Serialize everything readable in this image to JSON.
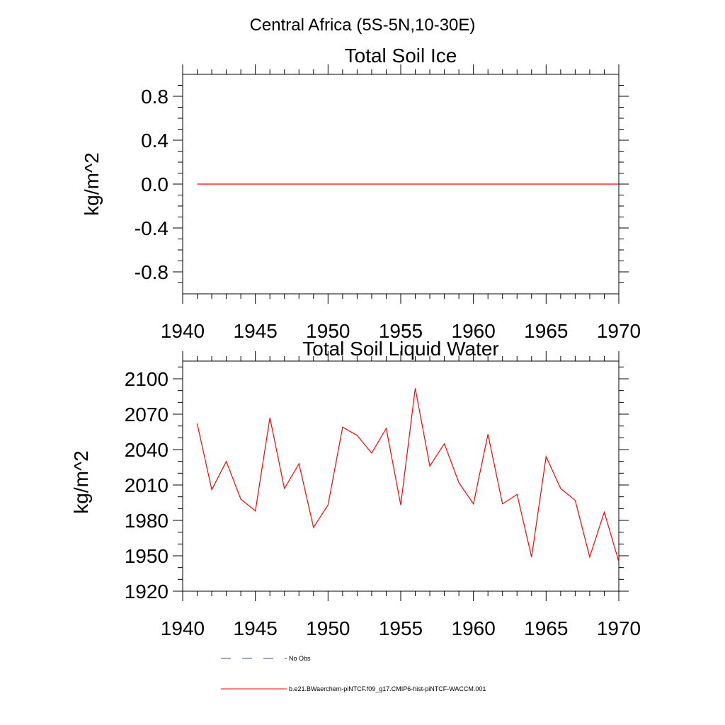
{
  "figure": {
    "title": "Central Africa (5S-5N,10-30E)"
  },
  "chart_data": [
    {
      "type": "line",
      "title": "Total Soil Ice",
      "xlabel": "",
      "ylabel": "kg/m^2",
      "xlim": [
        1940,
        1970
      ],
      "ylim": [
        -1.0,
        1.0
      ],
      "xticks": [
        "1940",
        "1945",
        "1950",
        "1955",
        "1960",
        "1965",
        "1970"
      ],
      "yticks": [
        "0.8",
        "0.4",
        "0.0",
        "-0.4",
        "-0.8"
      ],
      "ytick_values": [
        0.8,
        0.4,
        0.0,
        -0.4,
        -0.8
      ],
      "grid": false,
      "series": [
        {
          "name": "b.e21.BWaerchem-piNTCF.f09_g17.CMIP6-hist-piNTCF-WACCM.001",
          "color": "#ff0000",
          "x": [
            1941,
            1942,
            1943,
            1944,
            1945,
            1946,
            1947,
            1948,
            1949,
            1950,
            1951,
            1952,
            1953,
            1954,
            1955,
            1956,
            1957,
            1958,
            1959,
            1960,
            1961,
            1962,
            1963,
            1964,
            1965,
            1966,
            1967,
            1968,
            1969,
            1970
          ],
          "values": [
            0,
            0,
            0,
            0,
            0,
            0,
            0,
            0,
            0,
            0,
            0,
            0,
            0,
            0,
            0,
            0,
            0,
            0,
            0,
            0,
            0,
            0,
            0,
            0,
            0,
            0,
            0,
            0,
            0,
            0
          ]
        }
      ]
    },
    {
      "type": "line",
      "title": "Total Soil Liquid Water",
      "xlabel": "",
      "ylabel": "kg/m^2",
      "xlim": [
        1940,
        1970
      ],
      "ylim": [
        1920,
        2115
      ],
      "xticks": [
        "1940",
        "1945",
        "1950",
        "1955",
        "1960",
        "1965",
        "1970"
      ],
      "yticks": [
        "2100",
        "2070",
        "2040",
        "2010",
        "1980",
        "1950",
        "1920"
      ],
      "ytick_values": [
        2100,
        2070,
        2040,
        2010,
        1980,
        1950,
        1920
      ],
      "grid": false,
      "series": [
        {
          "name": "b.e21.BWaerchem-piNTCF.f09_g17.CMIP6-hist-piNTCF-WACCM.001",
          "color": "#ff0000",
          "x": [
            1941,
            1942,
            1943,
            1944,
            1945,
            1946,
            1947,
            1948,
            1949,
            1950,
            1951,
            1952,
            1953,
            1954,
            1955,
            1956,
            1957,
            1958,
            1959,
            1960,
            1961,
            1962,
            1963,
            1964,
            1965,
            1966,
            1967,
            1968,
            1969,
            1970
          ],
          "values": [
            2062,
            2006,
            2030,
            1998,
            1988,
            2067,
            2007,
            2028,
            1974,
            1993,
            2059,
            2052,
            2037,
            2058,
            1993,
            2092,
            2026,
            2045,
            2012,
            1994,
            2053,
            1994,
            2002,
            1949,
            2034,
            2007,
            1997,
            1949,
            1987,
            1945
          ]
        }
      ]
    }
  ],
  "legend": {
    "items": [
      {
        "label": "No Obs",
        "style": "dashed",
        "color": "#3b4a9a"
      },
      {
        "label": "b.e21.BWaerchem-piNTCF.f09_g17.CMIP6-hist-piNTCF-WACCM.001",
        "style": "solid",
        "color": "#ff0000"
      }
    ]
  }
}
